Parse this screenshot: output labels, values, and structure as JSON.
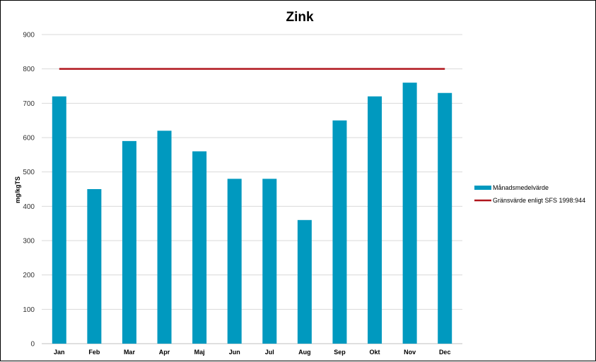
{
  "chart_data": {
    "type": "bar",
    "title": "Zink",
    "xlabel": "",
    "ylabel": "mg/kgTS",
    "ylim": [
      0,
      900
    ],
    "yticks": [
      0,
      100,
      200,
      300,
      400,
      500,
      600,
      700,
      800,
      900
    ],
    "grid": true,
    "legend_position": "right",
    "categories": [
      "Jan",
      "Feb",
      "Mar",
      "Apr",
      "Maj",
      "Jun",
      "Jul",
      "Aug",
      "Sep",
      "Okt",
      "Nov",
      "Dec"
    ],
    "series": [
      {
        "name": "Månadsmedelvärde",
        "type": "bar",
        "color": "#0099BF",
        "values": [
          720,
          450,
          590,
          620,
          560,
          480,
          480,
          360,
          650,
          720,
          760,
          730
        ]
      },
      {
        "name": "Gränsvärde enligt SFS 1998:944",
        "type": "line",
        "color": "#B0151C",
        "values": [
          800,
          800,
          800,
          800,
          800,
          800,
          800,
          800,
          800,
          800,
          800,
          800
        ]
      }
    ]
  }
}
